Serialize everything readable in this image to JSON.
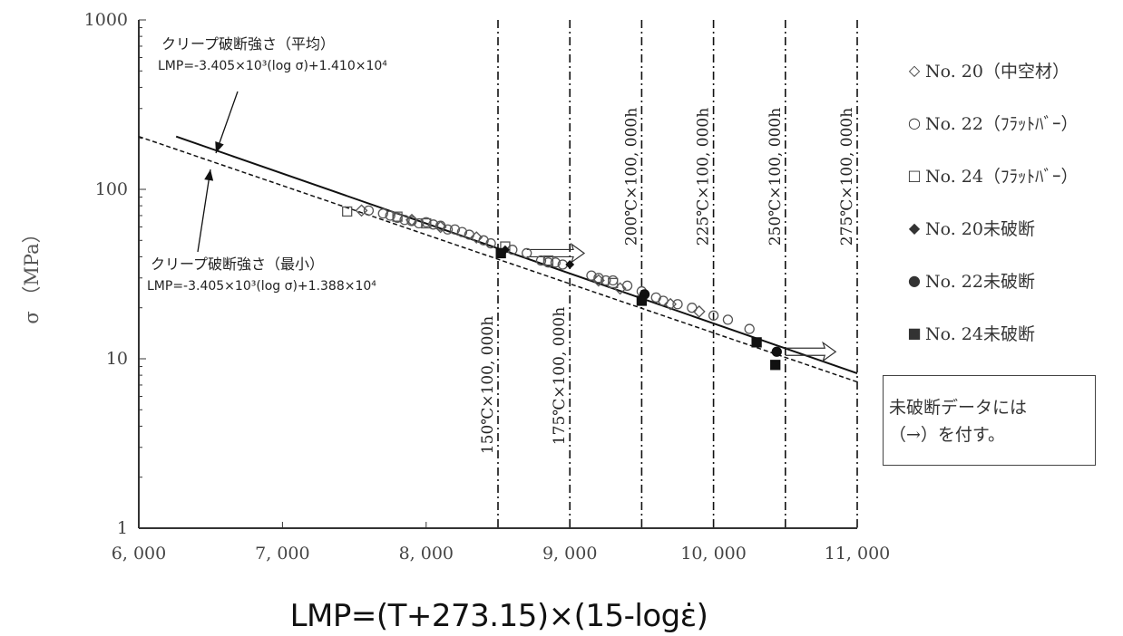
{
  "chart_data": {
    "type": "scatter",
    "xlabel": "LMP=(T+273.15)×(15-logε̇)",
    "ylabel": "σ （MPa）",
    "x_scale": "linear",
    "y_scale": "log",
    "xlim": [
      6000,
      11000
    ],
    "ylim": [
      1,
      1000
    ],
    "x_ticks": [
      6000,
      7000,
      8000,
      9000,
      10000,
      11000
    ],
    "x_tick_labels": [
      "6, 000",
      "7, 000",
      "8, 000",
      "9, 000",
      "10, 000",
      "11, 000"
    ],
    "y_ticks": [
      1,
      10,
      100,
      1000
    ],
    "y_tick_labels": [
      "1",
      "10",
      "100",
      "1000"
    ],
    "grid": false,
    "legend_position": "right",
    "reference_lines": [
      {
        "x": 8500,
        "label": "150℃×100, 000h"
      },
      {
        "x": 9000,
        "label": "175℃×100, 000h"
      },
      {
        "x": 9500,
        "label": "200℃×100, 000h"
      },
      {
        "x": 10000,
        "label": "225℃×100, 000h"
      },
      {
        "x": 10500,
        "label": "250℃×100, 000h"
      },
      {
        "x": 11000,
        "label": "275℃×100, 000h"
      }
    ],
    "fit_lines": [
      {
        "name": "average",
        "style": "solid",
        "x": [
          6260,
          11000
        ],
        "y": [
          205,
          8.2
        ]
      },
      {
        "name": "minimum",
        "style": "dashed",
        "x": [
          6000,
          11000
        ],
        "y": [
          205,
          7.3
        ]
      }
    ],
    "annotations": [
      {
        "text_lines": [
          "クリープ破断強さ（平均）",
          "LMP=-3.405×10³(log σ)+1.410×10⁴"
        ]
      },
      {
        "text_lines": [
          "クリープ破断強さ（最小）",
          "LMP=-3.405×10³(log σ)+1.388×10⁴"
        ]
      }
    ],
    "series": [
      {
        "name": "No. 20(中空材)",
        "marker": "diamond-open",
        "points": [
          [
            7550,
            75
          ],
          [
            7900,
            66
          ],
          [
            8100,
            60
          ],
          [
            8350,
            52
          ],
          [
            9200,
            29
          ],
          [
            9350,
            26
          ],
          [
            9700,
            21
          ],
          [
            9900,
            19
          ]
        ]
      },
      {
        "name": "No. 22(ﾌﾗｯﾄﾊﾞｰ)",
        "marker": "circle-open",
        "points": [
          [
            7600,
            75
          ],
          [
            7700,
            72
          ],
          [
            7750,
            70
          ],
          [
            7800,
            68
          ],
          [
            7850,
            66
          ],
          [
            7900,
            65
          ],
          [
            7950,
            63
          ],
          [
            8000,
            64
          ],
          [
            8050,
            62
          ],
          [
            8100,
            61
          ],
          [
            8150,
            58
          ],
          [
            8200,
            58
          ],
          [
            8250,
            56
          ],
          [
            8300,
            54
          ],
          [
            8400,
            50
          ],
          [
            8450,
            48
          ],
          [
            8600,
            44
          ],
          [
            8700,
            42
          ],
          [
            8800,
            38
          ],
          [
            8850,
            37
          ],
          [
            8900,
            37
          ],
          [
            8950,
            36
          ],
          [
            9150,
            31
          ],
          [
            9200,
            30
          ],
          [
            9250,
            29
          ],
          [
            9300,
            29
          ],
          [
            9400,
            27
          ],
          [
            9500,
            25
          ],
          [
            9600,
            23
          ],
          [
            9650,
            22
          ],
          [
            9750,
            21
          ],
          [
            9850,
            20
          ],
          [
            10000,
            18
          ],
          [
            10100,
            17
          ],
          [
            10250,
            15
          ]
        ]
      },
      {
        "name": "No. 24(ﾌﾗｯﾄﾊﾞｰ)",
        "marker": "square-open",
        "points": [
          [
            7450,
            74
          ],
          [
            7800,
            69
          ],
          [
            8000,
            63
          ],
          [
            8550,
            46
          ],
          [
            8850,
            38
          ],
          [
            9300,
            28
          ]
        ]
      },
      {
        "name": "No. 20未破断",
        "marker": "diamond-filled",
        "points": [
          [
            8550,
            44
          ],
          [
            9000,
            36
          ]
        ]
      },
      {
        "name": "No. 22未破断",
        "marker": "circle-filled",
        "points": [
          [
            9520,
            24
          ],
          [
            10440,
            11
          ]
        ]
      },
      {
        "name": "No. 24未破断",
        "marker": "square-filled",
        "points": [
          [
            8520,
            42
          ],
          [
            9500,
            22
          ],
          [
            10300,
            12.5
          ],
          [
            10430,
            9.2
          ]
        ]
      }
    ],
    "runout_arrows": [
      {
        "from": [
          8700,
          42
        ],
        "to": [
          9100,
          42
        ]
      },
      {
        "from": [
          10500,
          11
        ],
        "to": [
          10850,
          11
        ]
      }
    ]
  },
  "legend": {
    "items": [
      {
        "marker": "◇",
        "label": "No. 20（中空材）"
      },
      {
        "marker": "○",
        "label": "No. 22（ﾌﾗｯﾄﾊﾞｰ）"
      },
      {
        "marker": "□",
        "label": "No. 24（ﾌﾗｯﾄﾊﾞｰ）"
      },
      {
        "marker": "◆",
        "label": "No. 20未破断"
      },
      {
        "marker": "●",
        "label": "No. 22未破断"
      },
      {
        "marker": "■",
        "label": "No. 24未破断"
      }
    ]
  },
  "note": {
    "line1": "未破断データには",
    "line2": "（→）を付す。"
  },
  "colors": {
    "axis": "#333333",
    "marker_open": "#555555",
    "marker_filled": "#111111",
    "fit_line": "#111111"
  }
}
